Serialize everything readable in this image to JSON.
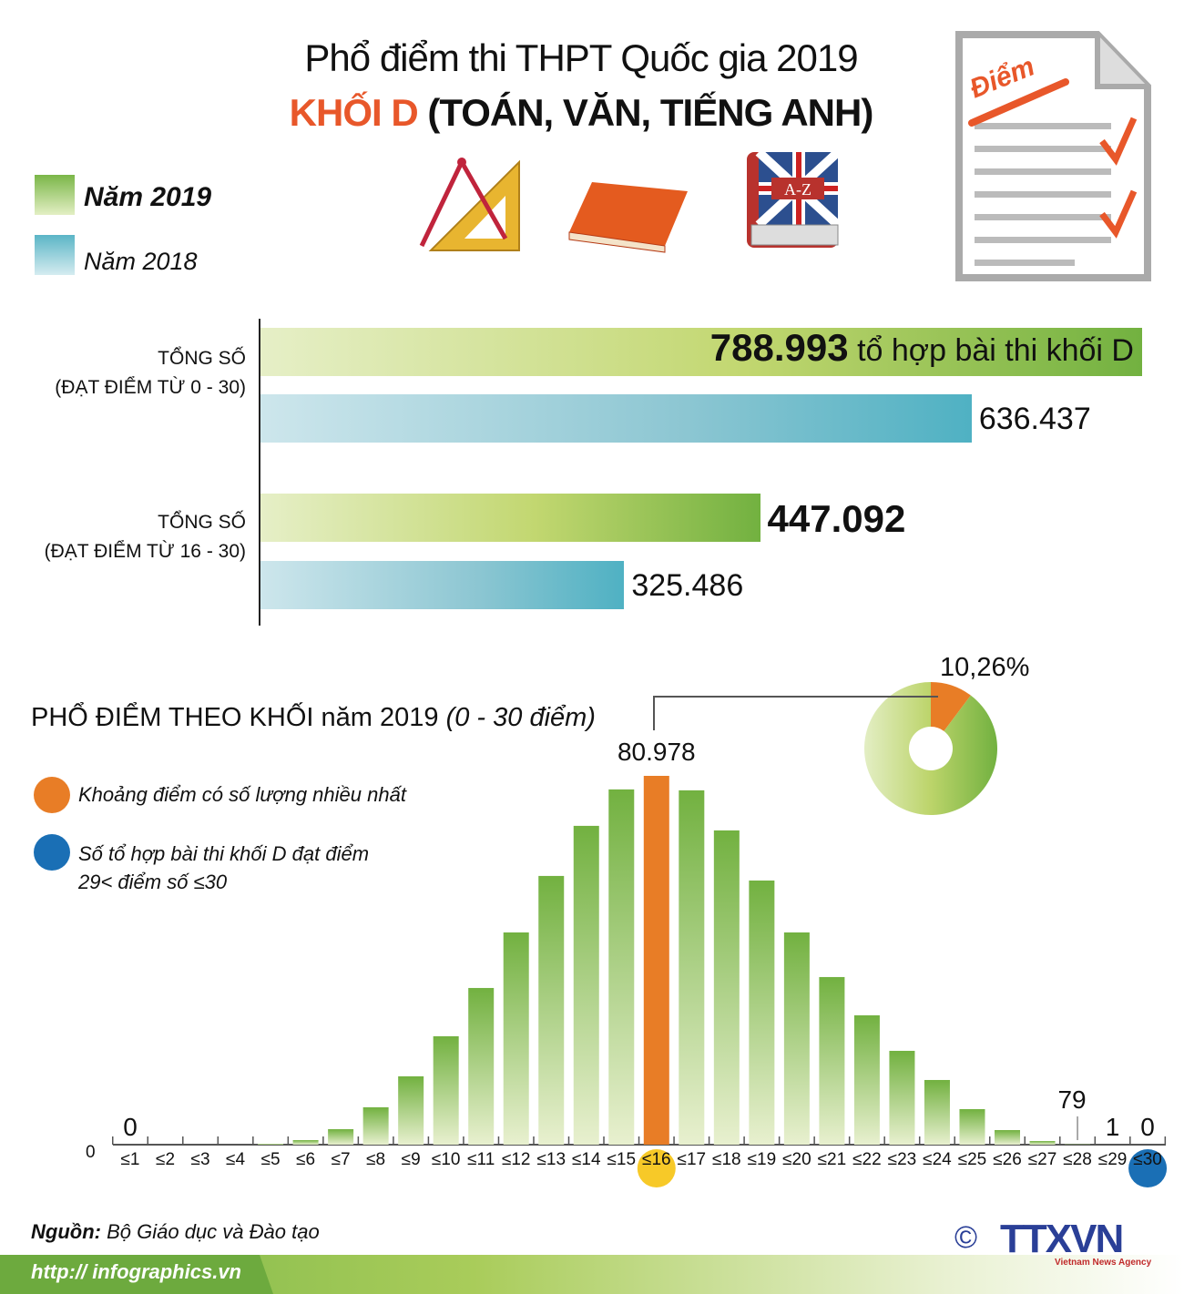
{
  "header": {
    "title": "Phổ điểm thi THPT Quốc gia 2019",
    "subtitle_accent": "KHỐI D",
    "subtitle_rest": "(TOÁN, VĂN, TIẾNG ANH)",
    "doc_icon_label": "Điểm"
  },
  "legend": {
    "items": [
      {
        "label": "Năm 2019",
        "color": "#7ab648"
      },
      {
        "label": "Năm 2018",
        "color": "#5bb5c6"
      }
    ]
  },
  "chart_data": [
    {
      "type": "bar",
      "orientation": "horizontal",
      "categories": [
        "TỔNG SỐ (ĐẠT ĐIỂM TỪ 0 - 30)",
        "TỔNG SỐ (ĐẠT ĐIỂM TỪ 16 - 30)"
      ],
      "category_lines": [
        [
          "TỔNG SỐ",
          "(ĐẠT ĐIỂM TỪ 0 - 30)"
        ],
        [
          "TỔNG SỐ",
          "(ĐẠT ĐIỂM TỪ 16 - 30)"
        ]
      ],
      "series": [
        {
          "name": "Năm 2019",
          "values": [
            788993,
            447092
          ],
          "labels": [
            "788.993",
            "447.092"
          ]
        },
        {
          "name": "Năm 2018",
          "values": [
            636437,
            325486
          ],
          "labels": [
            "636.437",
            "325.486"
          ]
        }
      ],
      "annotation": "tổ hợp bài thi khối D"
    },
    {
      "type": "bar",
      "title": "PHỔ ĐIỂM THEO KHỐI",
      "title_rest": "năm 2019",
      "title_italic": "(0 - 30 điểm)",
      "categories": [
        "≤1",
        "≤2",
        "≤3",
        "≤4",
        "≤5",
        "≤6",
        "≤7",
        "≤8",
        "≤9",
        "≤10",
        "≤11",
        "≤12",
        "≤13",
        "≤14",
        "≤15",
        "≤16",
        "≤17",
        "≤18",
        "≤19",
        "≤20",
        "≤21",
        "≤22",
        "≤23",
        "≤24",
        "≤25",
        "≤26",
        "≤27",
        "≤28",
        "≤29",
        "≤30"
      ],
      "values": [
        0,
        0,
        0,
        0,
        200,
        1000,
        3400,
        8200,
        15000,
        23800,
        34400,
        46600,
        59000,
        70000,
        78000,
        80978,
        77800,
        69000,
        58000,
        46600,
        36800,
        28400,
        20600,
        14200,
        7800,
        3200,
        800,
        79,
        1,
        0
      ],
      "data_labels": {
        "0": "0",
        "15": "80.978",
        "27": "79",
        "28": "1",
        "29": "0"
      },
      "y_zero_label": "0",
      "ylim": [
        0,
        80978
      ],
      "highlight_index": 15,
      "highlight_color": "#e87d26",
      "top_index": 29,
      "top_color": "#1a6fb5",
      "legend": [
        {
          "label": "Khoảng điểm có số lượng nhiều nhất",
          "color": "#e87d26"
        },
        {
          "label": "Số tổ hợp bài thi khối D đạt điểm",
          "label2": "29< điểm số ≤30",
          "color": "#1a6fb5"
        }
      ]
    },
    {
      "type": "pie",
      "slices": [
        {
          "value": 10.26,
          "label": "10,26%",
          "color": "#e87d26"
        },
        {
          "value": 89.74,
          "color": "#9cc75a"
        }
      ]
    }
  ],
  "footer": {
    "source_label": "Nguồn:",
    "source": "Bộ Giáo dục và Đào tạo",
    "url": "http:// infographics.vn",
    "logo": "TTXVN",
    "logo_sub": "Vietnam News Agency",
    "copyright": "©"
  }
}
